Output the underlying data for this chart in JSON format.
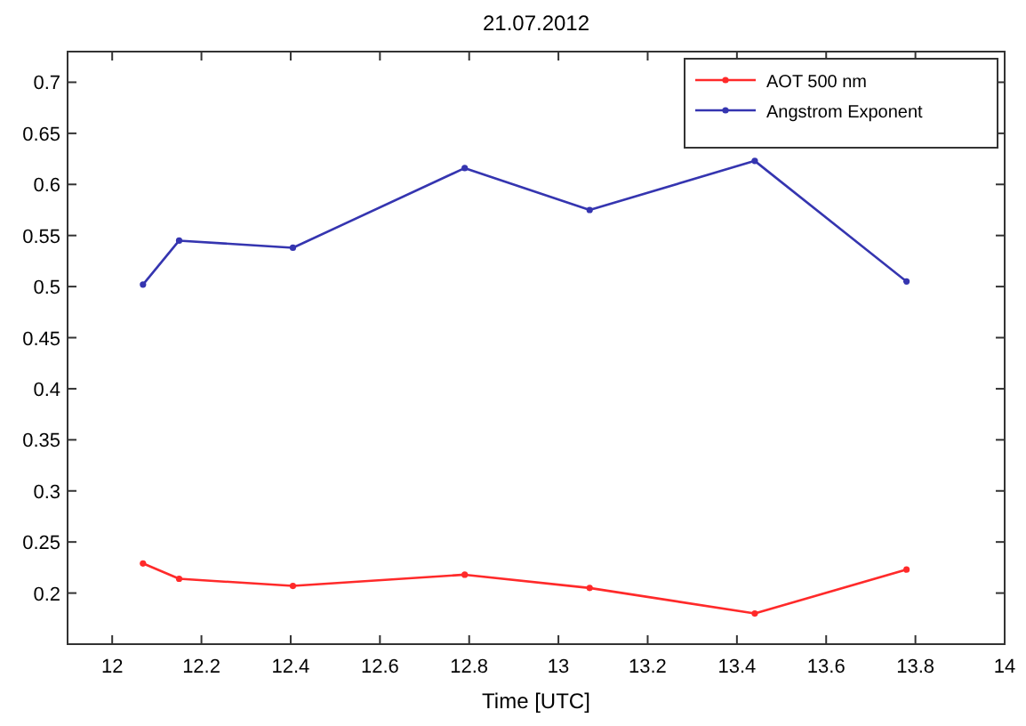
{
  "chart_data": {
    "type": "line",
    "title": "21.07.2012",
    "xlabel": "Time [UTC]",
    "x": [
      12.069,
      12.15,
      12.405,
      12.79,
      13.07,
      13.44,
      13.78
    ],
    "series": [
      {
        "name": "AOT 500 nm",
        "color": "#ff2a2a",
        "values": [
          0.229,
          0.214,
          0.207,
          0.218,
          0.205,
          0.18,
          0.223
        ]
      },
      {
        "name": "Angstrom Exponent",
        "color": "#3535b0",
        "values": [
          0.502,
          0.545,
          0.538,
          0.616,
          0.575,
          0.623,
          0.505
        ]
      }
    ],
    "xlim": [
      11.9,
      14
    ],
    "xticks": [
      12,
      12.2,
      12.4,
      12.6,
      12.8,
      13,
      13.2,
      13.4,
      13.6,
      13.8,
      14
    ],
    "ylim": [
      0.15,
      0.73
    ],
    "yticks": [
      0.2,
      0.25,
      0.3,
      0.35,
      0.4,
      0.45,
      0.5,
      0.55,
      0.6,
      0.65,
      0.7
    ],
    "grid": false,
    "legend": "top right",
    "marker": "circle",
    "line_style": "solid"
  }
}
